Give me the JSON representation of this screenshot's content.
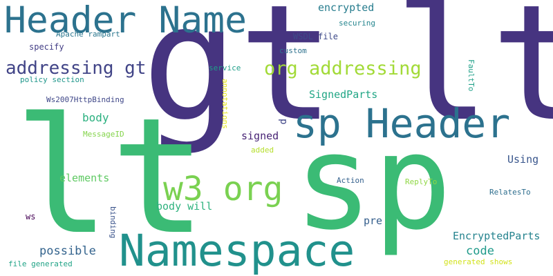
{
  "words": [
    {
      "text": "gt",
      "color": "#463480",
      "rotation": 0
    },
    {
      "text": "lt",
      "color": "#463480",
      "rotation": 0
    },
    {
      "text": "lt",
      "color": "#3bbb75",
      "rotation": 0
    },
    {
      "text": "sp",
      "color": "#3bbb75",
      "rotation": 0
    },
    {
      "text": "Header Name",
      "color": "#2c728e",
      "rotation": 0
    },
    {
      "text": "sp Header",
      "color": "#2c728e",
      "rotation": 0
    },
    {
      "text": "Namespace",
      "color": "#21918c",
      "rotation": 0
    },
    {
      "text": "w3 org",
      "color": "#7ad151",
      "rotation": 0
    },
    {
      "text": "addressing gt",
      "color": "#414487",
      "rotation": 0
    },
    {
      "text": "org addressing",
      "color": "#a2da37",
      "rotation": 0
    },
    {
      "text": "encrypted",
      "color": "#287d8e",
      "rotation": 0
    },
    {
      "text": "securing",
      "color": "#25858e",
      "rotation": 0
    },
    {
      "text": "WSDL file",
      "color": "#3e4a89",
      "rotation": 0
    },
    {
      "text": "Apache rampart",
      "color": "#2a768e",
      "rotation": 0
    },
    {
      "text": "specify",
      "color": "#433e85",
      "rotation": 0
    },
    {
      "text": "custom",
      "color": "#2d718e",
      "rotation": 0
    },
    {
      "text": "service",
      "color": "#1f9e89",
      "rotation": 0
    },
    {
      "text": "policy section",
      "color": "#1f968b",
      "rotation": 0
    },
    {
      "text": "SignedParts",
      "color": "#21a685",
      "rotation": 0
    },
    {
      "text": "Ws2007HttpBinding",
      "color": "#3f4788",
      "rotation": 0
    },
    {
      "text": "body",
      "color": "#2ab07f",
      "rotation": 0
    },
    {
      "text": "MessageID",
      "color": "#84d44b",
      "rotation": 0
    },
    {
      "text": "signed",
      "color": "#482475",
      "rotation": 0
    },
    {
      "text": "added",
      "color": "#b5de2b",
      "rotation": 0
    },
    {
      "text": "Using",
      "color": "#39568c",
      "rotation": 0
    },
    {
      "text": "elements",
      "color": "#5ec962",
      "rotation": 0
    },
    {
      "text": "Action",
      "color": "#34618d",
      "rotation": 0
    },
    {
      "text": "ReplyTo",
      "color": "#8fd744",
      "rotation": 0
    },
    {
      "text": "RelatesTo",
      "color": "#2e6e8e",
      "rotation": 0
    },
    {
      "text": "body will",
      "color": "#2db27d",
      "rotation": 0
    },
    {
      "text": "ws",
      "color": "#440154",
      "rotation": 0
    },
    {
      "text": "pre",
      "color": "#355f8d",
      "rotation": 0
    },
    {
      "text": "possible",
      "color": "#33638d",
      "rotation": 0
    },
    {
      "text": "EncryptedParts",
      "color": "#25838e",
      "rotation": 0
    },
    {
      "text": "code",
      "color": "#1f9a8a",
      "rotation": 0
    },
    {
      "text": "file generated",
      "color": "#20a386",
      "rotation": 0
    },
    {
      "text": "generated shows",
      "color": "#d2e21b",
      "rotation": 0
    },
    {
      "text": "annotations",
      "color": "#e5e419",
      "rotation": 90
    },
    {
      "text": "FaultTo",
      "color": "#1fa088",
      "rotation": 90
    },
    {
      "text": "binding",
      "color": "#3a538b",
      "rotation": 90
    },
    {
      "text": "p",
      "color": "#404688",
      "rotation": 90
    }
  ]
}
